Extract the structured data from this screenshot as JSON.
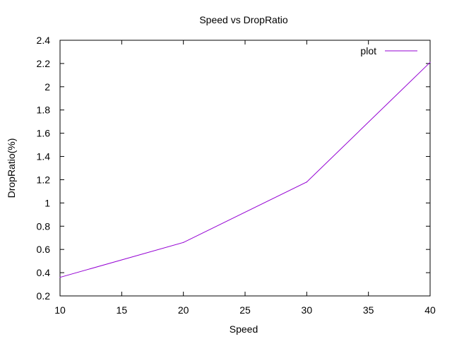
{
  "chart_data": {
    "type": "line",
    "title": "Speed vs DropRatio",
    "xlabel": "Speed",
    "ylabel": "DropRatio(%)",
    "xlim": [
      10,
      40
    ],
    "ylim": [
      0.2,
      2.4
    ],
    "xticks": [
      10,
      15,
      20,
      25,
      30,
      35,
      40
    ],
    "yticks": [
      0.2,
      0.4,
      0.6,
      0.8,
      1,
      1.2,
      1.4,
      1.6,
      1.8,
      2,
      2.2,
      2.4
    ],
    "xtick_labels": [
      "10",
      "15",
      "20",
      "25",
      "30",
      "35",
      "40"
    ],
    "ytick_labels": [
      "0.2",
      "0.4",
      "0.6",
      "0.8",
      "1",
      "1.2",
      "1.4",
      "1.6",
      "1.8",
      "2",
      "2.2",
      "2.4"
    ],
    "grid": false,
    "legend_position": "top-right",
    "series": [
      {
        "name": "plot",
        "color": "#9400d3",
        "x": [
          10,
          20,
          30,
          40
        ],
        "y": [
          0.36,
          0.66,
          1.18,
          2.21
        ]
      }
    ]
  }
}
